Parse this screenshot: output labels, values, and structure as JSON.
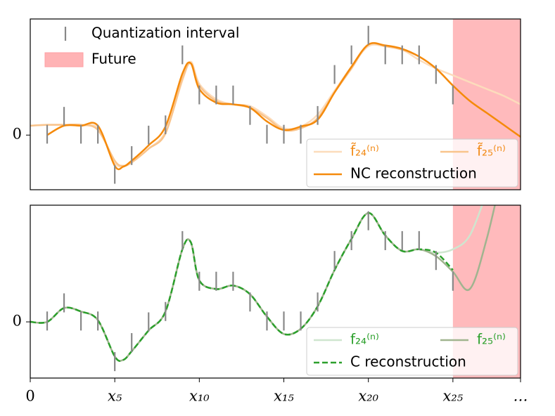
{
  "chart_data": [
    {
      "type": "line",
      "xlim": [
        0,
        29
      ],
      "ylim": [
        -3.2,
        6.8
      ],
      "yticks": [
        0
      ],
      "legend": "lower right",
      "x": [
        0,
        1,
        2,
        3,
        4,
        5,
        5.5,
        6,
        7,
        8,
        9,
        9.5,
        10,
        11,
        12,
        13,
        14,
        15,
        16,
        17,
        18,
        19,
        20,
        21,
        22,
        23,
        24,
        25,
        26,
        27,
        28,
        29
      ],
      "future": {
        "name": "Future",
        "color": "#ffb3b5",
        "span": [
          25,
          29
        ]
      },
      "intervals": {
        "name": "Quantization interval",
        "color": "#888888",
        "error": 0.55,
        "x": [
          1,
          2,
          3,
          4,
          5,
          6,
          7,
          8,
          9,
          10,
          11,
          12,
          13,
          14,
          15,
          16,
          17,
          18,
          19,
          20,
          21,
          22,
          23,
          24,
          25
        ],
        "values": [
          0.05,
          1.1,
          0.05,
          0.05,
          -2.3,
          -1.2,
          0,
          0.6,
          4.7,
          2.35,
          2.35,
          2.35,
          1.15,
          0.05,
          0.05,
          0.05,
          1.15,
          3.55,
          4.7,
          5.85,
          4.7,
          4.7,
          4.7,
          3.55,
          2.35
        ]
      },
      "series": [
        {
          "name": "f̃₂₄⁽ⁿ⁾",
          "color": "#fcdcbc",
          "label_color": "#f28c1a",
          "values": [
            0.55,
            0.6,
            0.6,
            0.55,
            0.4,
            -1.6,
            -1.8,
            -1.6,
            -0.8,
            0.2,
            3.2,
            4.3,
            3,
            2.1,
            1.8,
            1.7,
            1.1,
            0.4,
            0.5,
            1.2,
            2.6,
            4,
            5.2,
            5.2,
            5,
            4.4,
            3.9,
            3.5,
            3.1,
            2.7,
            2.3,
            1.8
          ]
        },
        {
          "name": "f̃₂₅⁽ⁿ⁾",
          "color": "#f9c48c",
          "label_color": "#f28c1a",
          "values": [
            0.55,
            0.6,
            0.6,
            0.6,
            0.3,
            -1.5,
            -1.8,
            -1.6,
            -0.8,
            0.1,
            3.3,
            4.2,
            2.9,
            2,
            1.8,
            1.6,
            1,
            0.3,
            0.4,
            1,
            2.5,
            3.9,
            5.3,
            5.2,
            5,
            4.6,
            3.9,
            2.9,
            null,
            null,
            null,
            null
          ]
        },
        {
          "name": "NC reconstruction",
          "color": "#f58a0b",
          "label_color": "#000000",
          "values": [
            null,
            0,
            0.55,
            0.55,
            0.55,
            -1.8,
            -1.85,
            -1.5,
            -0.6,
            0.5,
            3.6,
            4.2,
            2.7,
            1.9,
            1.8,
            1.6,
            0.8,
            0.3,
            0.5,
            0.9,
            2.5,
            4,
            5.3,
            5.25,
            5.05,
            4.6,
            3.9,
            2.9,
            2,
            1.3,
            0.6,
            -0.1
          ]
        }
      ]
    },
    {
      "type": "line",
      "xlim": [
        0,
        29
      ],
      "ylim": [
        -3.25,
        6.75
      ],
      "yticks": [
        0
      ],
      "legend": "lower right",
      "xticks": [
        0,
        {
          "value": 5,
          "label": "x₅"
        },
        {
          "value": 10,
          "label": "x₁₀"
        },
        {
          "value": 15,
          "label": "x₁₅"
        },
        {
          "value": 20,
          "label": "x₂₀"
        },
        {
          "value": 25,
          "label": "x₂₅"
        },
        {
          "value": 29,
          "label": "…"
        }
      ],
      "x": [
        0,
        1,
        2,
        3,
        4,
        5,
        5.5,
        6,
        7,
        8,
        9,
        9.5,
        10,
        11,
        12,
        13,
        14,
        15,
        16,
        17,
        18,
        19,
        20,
        21,
        22,
        23,
        24,
        25,
        26,
        27,
        28,
        29
      ],
      "future": {
        "color": "#ffb3b5",
        "span": [
          25,
          29
        ]
      },
      "intervals": {
        "color": "#888888",
        "error": 0.55,
        "x": [
          1,
          2,
          3,
          4,
          5,
          6,
          7,
          8,
          9,
          10,
          11,
          12,
          13,
          14,
          15,
          16,
          17,
          18,
          19,
          20,
          21,
          22,
          23,
          24,
          25
        ],
        "values": [
          0.05,
          1.1,
          0.05,
          0.05,
          -2.3,
          -1.2,
          0,
          0.6,
          4.7,
          2.35,
          2.35,
          2.35,
          1.15,
          0.05,
          0.05,
          0.05,
          1.15,
          3.55,
          4.7,
          5.85,
          4.7,
          4.7,
          4.7,
          3.55,
          2.35
        ]
      },
      "series": [
        {
          "name": "f₂₄⁽ⁿ⁾",
          "color": "#cfe6cf",
          "label_color": "#2ca02c",
          "values": [
            0,
            0,
            0.8,
            0.6,
            0.1,
            -2,
            -2.2,
            -1.7,
            -0.5,
            0.6,
            4.2,
            4.6,
            2.4,
            1.9,
            2.1,
            1.6,
            0.3,
            -0.7,
            -0.4,
            0.9,
            3,
            4.8,
            6.3,
            5,
            4.1,
            4.2,
            4,
            4.2,
            5,
            7.5,
            null,
            null
          ]
        },
        {
          "name": "f₂₅⁽ⁿ⁾",
          "color": "#a0b48f",
          "label_color": "#2ca02c",
          "values": [
            0,
            0,
            0.8,
            0.6,
            0.1,
            -2,
            -2.2,
            -1.7,
            -0.5,
            0.6,
            4.2,
            4.6,
            2.4,
            1.9,
            2.1,
            1.6,
            0.3,
            -0.7,
            -0.4,
            0.9,
            3,
            4.8,
            6.3,
            5,
            4.1,
            4.2,
            3.8,
            2.9,
            1.9,
            4.8,
            9,
            null
          ]
        },
        {
          "name": "C reconstruction",
          "color": "#2ca02c",
          "label_color": "#000000",
          "dash": true,
          "values": [
            0,
            0,
            0.8,
            0.6,
            0.1,
            -2,
            -2.2,
            -1.7,
            -0.5,
            0.6,
            4.2,
            4.6,
            2.4,
            1.9,
            2.1,
            1.6,
            0.3,
            -0.7,
            -0.4,
            0.9,
            3,
            4.8,
            6.3,
            5,
            4.1,
            4.2,
            4,
            3,
            null,
            null,
            null,
            null
          ]
        }
      ]
    }
  ]
}
